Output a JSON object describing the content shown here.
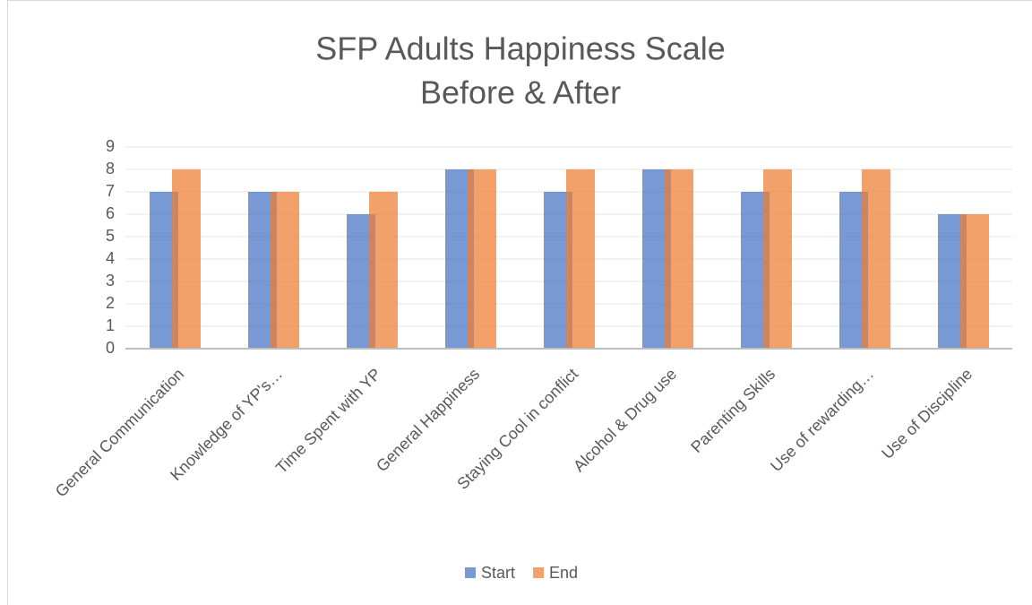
{
  "chart_data": {
    "type": "bar",
    "title": [
      "SFP Adults Happiness Scale",
      "Before & After"
    ],
    "categories": [
      "General Communication",
      "Knowledge of YP's…",
      "Time Spent with YP",
      "General Happiness",
      "Staying Cool in conflict",
      "Alcohol & Drug use",
      "Parenting Skills",
      "Use of rewarding…",
      "Use of Discipline"
    ],
    "series": [
      {
        "name": "Start",
        "color": "#4472c4",
        "values": [
          7,
          7,
          6,
          8,
          7,
          8,
          7,
          7,
          6
        ]
      },
      {
        "name": "End",
        "color": "#ed7d31",
        "values": [
          8,
          7,
          7,
          8,
          8,
          8,
          8,
          8,
          6
        ]
      }
    ],
    "ylim": [
      0,
      9
    ],
    "yticks": [
      0,
      1,
      2,
      3,
      4,
      5,
      6,
      7,
      8,
      9
    ],
    "grid": true,
    "legend": "bottom"
  }
}
